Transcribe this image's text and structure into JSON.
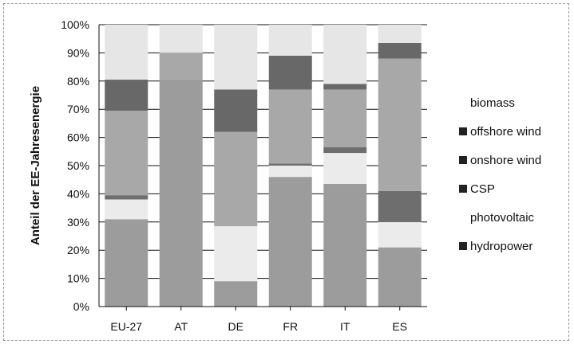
{
  "chart_data": {
    "type": "bar",
    "stacked": true,
    "normalized": true,
    "categories": [
      "EU-27",
      "AT",
      "DE",
      "FR",
      "IT",
      "ES"
    ],
    "ylabel": "Anteil der EE-Jahresenergie",
    "ylim": [
      0,
      100
    ],
    "yticks": [
      "0%",
      "10%",
      "20%",
      "30%",
      "40%",
      "50%",
      "60%",
      "70%",
      "80%",
      "90%",
      "100%"
    ],
    "grid": true,
    "legend_position": "right",
    "series": [
      {
        "name": "hydropower",
        "color": "#9c9c9c",
        "values": [
          31,
          80,
          9,
          46,
          43.5,
          21
        ]
      },
      {
        "name": "photovoltaic",
        "color": "#ebebeb",
        "values": [
          7,
          0,
          19.5,
          4,
          11,
          9
        ]
      },
      {
        "name": "CSP",
        "color": "#6e6e6e",
        "values": [
          1.5,
          0,
          0,
          0.7,
          2,
          11
        ]
      },
      {
        "name": "onshore wind",
        "color": "#a8a8a8",
        "values": [
          30,
          10,
          33.5,
          26.3,
          20.5,
          47
        ]
      },
      {
        "name": "offshore wind",
        "color": "#686868",
        "values": [
          11,
          0,
          15,
          12,
          2,
          5.5
        ]
      },
      {
        "name": "biomass",
        "color": "#e6e6e6",
        "values": [
          19.5,
          10,
          23,
          11,
          21,
          6.5
        ]
      }
    ]
  }
}
